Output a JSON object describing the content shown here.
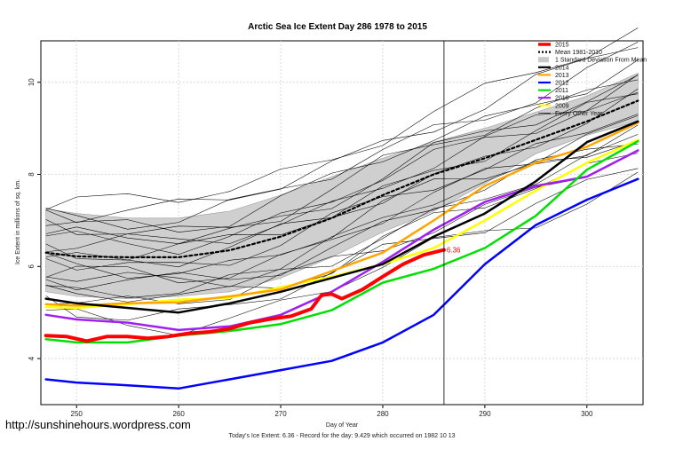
{
  "chart_data": {
    "type": "line",
    "title": "Arctic Sea Ice Extent Day 286 1978 to 2015",
    "xlabel": "Day of Year",
    "ylabel": "Ice Extent in millions of sq. km.",
    "xlim": [
      246.5,
      305.5
    ],
    "ylim": [
      3.0,
      10.9
    ],
    "xticks": [
      250,
      260,
      270,
      280,
      290,
      300
    ],
    "yticks": [
      4,
      6,
      8,
      10
    ],
    "current_day": 286,
    "current_value_label": "6.36",
    "footer": "Today's Ice Extent: 6.36  - Record for the day: 9.429 which occurred on 1982 10 13",
    "band": {
      "name": "1 Standard Deviation From Mean",
      "x": [
        247,
        250,
        255,
        260,
        265,
        270,
        275,
        280,
        285,
        290,
        295,
        300,
        305
      ],
      "upper": [
        7.25,
        7.15,
        7.05,
        7.05,
        7.2,
        7.55,
        7.95,
        8.35,
        8.7,
        9.0,
        9.35,
        9.7,
        10.2
      ],
      "lower": [
        5.45,
        5.35,
        5.3,
        5.35,
        5.45,
        5.75,
        6.2,
        6.75,
        7.2,
        7.8,
        8.45,
        8.85,
        9.15
      ]
    },
    "series": [
      {
        "name": "2015",
        "color": "#ff0000",
        "width": 4,
        "x": [
          247,
          249,
          251,
          253,
          255,
          257,
          259,
          261,
          263,
          265,
          267,
          269,
          271,
          273,
          274,
          275,
          276,
          278,
          280,
          282,
          284,
          286
        ],
        "y": [
          4.5,
          4.48,
          4.38,
          4.48,
          4.48,
          4.44,
          4.48,
          4.55,
          4.58,
          4.65,
          4.78,
          4.86,
          4.92,
          5.08,
          5.38,
          5.4,
          5.3,
          5.5,
          5.78,
          6.05,
          6.25,
          6.36
        ]
      },
      {
        "name": "Mean 1981-2010",
        "color": "#000000",
        "width": 2.2,
        "dash": "3,3",
        "x": [
          247,
          250,
          255,
          260,
          265,
          270,
          275,
          280,
          285,
          290,
          295,
          300,
          305
        ],
        "y": [
          6.3,
          6.22,
          6.2,
          6.2,
          6.35,
          6.65,
          7.05,
          7.55,
          8.0,
          8.35,
          8.75,
          9.15,
          9.6
        ]
      },
      {
        "name": "2014",
        "color": "#000000",
        "width": 2.5,
        "x": [
          247,
          250,
          255,
          260,
          265,
          270,
          275,
          280,
          285,
          290,
          295,
          300,
          305
        ],
        "y": [
          5.3,
          5.2,
          5.1,
          5.0,
          5.2,
          5.45,
          5.75,
          6.05,
          6.65,
          7.15,
          7.85,
          8.7,
          9.15
        ]
      },
      {
        "name": "2013",
        "color": "#ffa500",
        "width": 2.5,
        "x": [
          247,
          250,
          255,
          260,
          265,
          270,
          275,
          280,
          285,
          290,
          295,
          300,
          305
        ],
        "y": [
          5.18,
          5.15,
          5.2,
          5.22,
          5.35,
          5.5,
          5.9,
          6.3,
          7.0,
          7.75,
          8.25,
          8.6,
          9.12
        ]
      },
      {
        "name": "2012",
        "color": "#0000ff",
        "width": 2.5,
        "x": [
          247,
          250,
          255,
          260,
          265,
          270,
          275,
          280,
          285,
          290,
          295,
          300,
          305
        ],
        "y": [
          3.55,
          3.48,
          3.42,
          3.35,
          3.55,
          3.75,
          3.95,
          4.35,
          4.95,
          6.05,
          6.9,
          7.45,
          7.9
        ]
      },
      {
        "name": "2011",
        "color": "#00e000",
        "width": 2.5,
        "x": [
          247,
          250,
          255,
          260,
          265,
          270,
          275,
          280,
          285,
          290,
          295,
          300,
          305
        ],
        "y": [
          4.42,
          4.35,
          4.35,
          4.5,
          4.6,
          4.75,
          5.05,
          5.65,
          5.95,
          6.4,
          7.1,
          8.1,
          8.72
        ]
      },
      {
        "name": "2010",
        "color": "#a020f0",
        "width": 2.5,
        "x": [
          247,
          250,
          255,
          260,
          265,
          270,
          275,
          280,
          285,
          290,
          295,
          300,
          305
        ],
        "y": [
          4.95,
          4.85,
          4.78,
          4.62,
          4.7,
          4.95,
          5.45,
          6.1,
          6.8,
          7.4,
          7.75,
          7.95,
          8.52
        ]
      },
      {
        "name": "2009",
        "color": "#ffff00",
        "width": 2.5,
        "x": [
          247,
          250,
          255,
          260,
          265,
          270,
          275,
          280,
          285,
          290,
          295,
          300,
          305
        ],
        "y": [
          5.12,
          5.1,
          5.18,
          5.28,
          5.32,
          5.55,
          5.78,
          6.05,
          6.4,
          7.0,
          7.65,
          8.25,
          8.75
        ]
      },
      {
        "name": "Every Other Year",
        "color": "#000000",
        "width": 0.6,
        "x": [
          247,
          250,
          255,
          260,
          265,
          270,
          275,
          280,
          285,
          290,
          295,
          300,
          305
        ],
        "y": [
          6.3,
          6.22,
          6.2,
          6.2,
          6.35,
          6.65,
          7.05,
          7.55,
          8.0,
          8.35,
          8.75,
          9.15,
          9.6
        ]
      }
    ],
    "legend": [
      {
        "label": "2015",
        "color": "#ff0000",
        "style": "thick"
      },
      {
        "label": "Mean 1981-2010",
        "color": "#000000",
        "style": "dotted"
      },
      {
        "label": "1 Standard Deviation From Mean",
        "color": "#c8c8c8",
        "style": "box"
      },
      {
        "label": "2014",
        "color": "#000000",
        "style": "line"
      },
      {
        "label": "2013",
        "color": "#ffa500",
        "style": "line"
      },
      {
        "label": "2012",
        "color": "#0000ff",
        "style": "line"
      },
      {
        "label": "2011",
        "color": "#00e000",
        "style": "line"
      },
      {
        "label": "2010",
        "color": "#a020f0",
        "style": "line"
      },
      {
        "label": "2009",
        "color": "#ffff00",
        "style": "line"
      },
      {
        "label": "Every Other Year",
        "color": "#000000",
        "style": "thin"
      }
    ]
  },
  "watermark": "http://sunshinehours.wordpress.com"
}
